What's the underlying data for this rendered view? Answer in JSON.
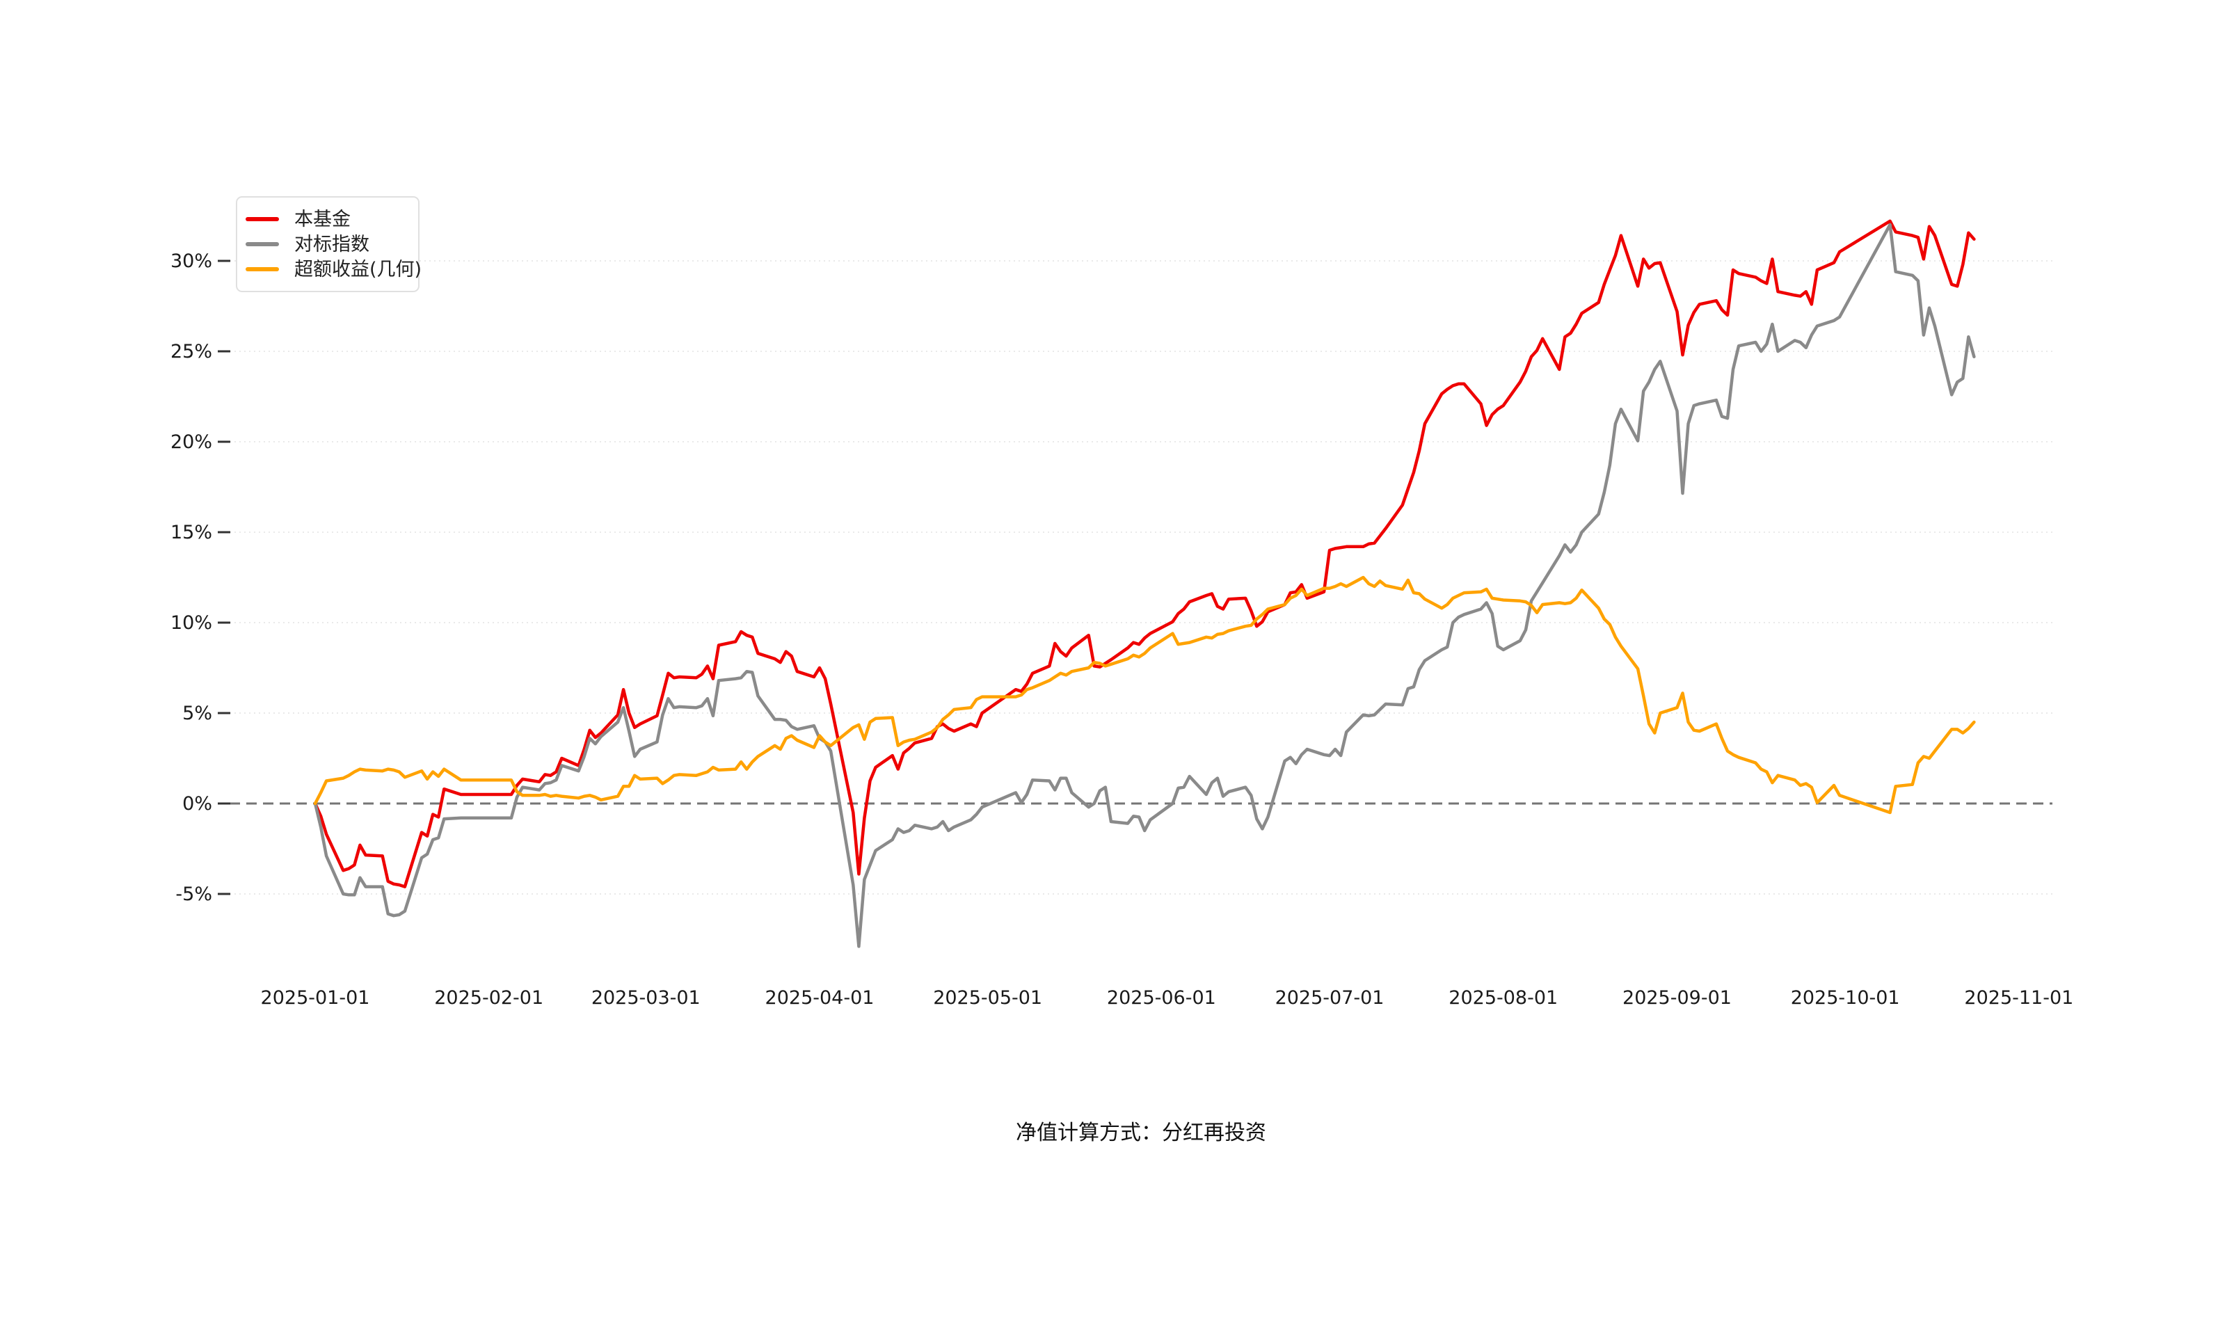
{
  "legend": {
    "items": [
      {
        "label": "本基金",
        "color": "#ee0000"
      },
      {
        "label": "对标指数",
        "color": "#8a8a8a"
      },
      {
        "label": "超额收益(几何)",
        "color": "#ffa200"
      }
    ]
  },
  "footer": {
    "text": "净值计算方式：分红再投资"
  },
  "chart_data": {
    "type": "line",
    "title": "",
    "legend_position": "top-left",
    "grid": "horizontal-dotted",
    "zero_line_value": 0,
    "ylim": [
      -8.7,
      33.9
    ],
    "y_ticks": [
      {
        "label": "30%",
        "value": 30
      },
      {
        "label": "25%",
        "value": 25
      },
      {
        "label": "20%",
        "value": 20
      },
      {
        "label": "15%",
        "value": 15
      },
      {
        "label": "10%",
        "value": 10
      },
      {
        "label": "5%",
        "value": 5
      },
      {
        "label": "0%",
        "value": 0
      },
      {
        "label": "-5%",
        "value": -5
      }
    ],
    "x_tick_labels": [
      "2025-01-01",
      "2025-02-01",
      "2025-03-01",
      "2025-04-01",
      "2025-05-01",
      "2025-06-01",
      "2025-07-01",
      "2025-08-01",
      "2025-09-01",
      "2025-10-01",
      "2025-11-01"
    ],
    "dates": [
      "01-01",
      "01-02",
      "01-03",
      "01-06",
      "01-07",
      "01-08",
      "01-09",
      "01-10",
      "01-13",
      "01-14",
      "01-15",
      "01-16",
      "01-17",
      "01-20",
      "01-21",
      "01-22",
      "01-23",
      "01-24",
      "01-27",
      "02-05",
      "02-06",
      "02-07",
      "02-10",
      "02-11",
      "02-12",
      "02-13",
      "02-14",
      "02-17",
      "02-18",
      "02-19",
      "02-20",
      "02-21",
      "02-24",
      "02-25",
      "02-26",
      "02-27",
      "02-28",
      "03-03",
      "03-04",
      "03-05",
      "03-06",
      "03-07",
      "03-10",
      "03-11",
      "03-12",
      "03-13",
      "03-14",
      "03-17",
      "03-18",
      "03-19",
      "03-20",
      "03-21",
      "03-24",
      "03-25",
      "03-26",
      "03-27",
      "03-28",
      "03-31",
      "04-01",
      "04-02",
      "04-03",
      "04-07",
      "04-08",
      "04-09",
      "04-10",
      "04-11",
      "04-14",
      "04-15",
      "04-16",
      "04-17",
      "04-18",
      "04-21",
      "04-22",
      "04-23",
      "04-24",
      "04-25",
      "04-28",
      "04-29",
      "04-30",
      "05-06",
      "05-07",
      "05-08",
      "05-09",
      "05-12",
      "05-13",
      "05-14",
      "05-15",
      "05-16",
      "05-19",
      "05-20",
      "05-21",
      "05-22",
      "05-23",
      "05-26",
      "05-27",
      "05-28",
      "05-29",
      "05-30",
      "06-03",
      "06-04",
      "06-05",
      "06-06",
      "06-09",
      "06-10",
      "06-11",
      "06-12",
      "06-13",
      "06-16",
      "06-17",
      "06-18",
      "06-19",
      "06-20",
      "06-23",
      "06-24",
      "06-25",
      "06-26",
      "06-27",
      "06-30",
      "07-01",
      "07-02",
      "07-03",
      "07-04",
      "07-07",
      "07-08",
      "07-09",
      "07-10",
      "07-11",
      "07-14",
      "07-15",
      "07-16",
      "07-17",
      "07-18",
      "07-21",
      "07-22",
      "07-23",
      "07-24",
      "07-25",
      "07-28",
      "07-29",
      "07-30",
      "07-31",
      "08-01",
      "08-04",
      "08-05",
      "08-06",
      "08-07",
      "08-08",
      "08-11",
      "08-12",
      "08-13",
      "08-14",
      "08-15",
      "08-18",
      "08-19",
      "08-20",
      "08-21",
      "08-22",
      "08-25",
      "08-26",
      "08-27",
      "08-28",
      "08-29",
      "09-01",
      "09-02",
      "09-03",
      "09-04",
      "09-05",
      "09-08",
      "09-09",
      "09-10",
      "09-11",
      "09-12",
      "09-15",
      "09-16",
      "09-17",
      "09-18",
      "09-19",
      "09-22",
      "09-23",
      "09-24",
      "09-25",
      "09-26",
      "09-29",
      "09-30",
      "10-09",
      "10-10",
      "10-13",
      "10-14",
      "10-15",
      "10-16",
      "10-17",
      "10-20",
      "10-21",
      "10-22",
      "10-23",
      "10-24"
    ],
    "series": [
      {
        "name": "本基金",
        "color": "#ee0000",
        "values": [
          0,
          -0.7,
          -1.7,
          -3.7,
          -3.6,
          -3.4,
          -2.3,
          -2.85,
          -2.9,
          -4.3,
          -4.45,
          -4.5,
          -4.6,
          -1.6,
          -1.8,
          -0.6,
          -0.75,
          0.8,
          0.5,
          0.5,
          1.0,
          1.35,
          1.2,
          1.6,
          1.55,
          1.75,
          2.5,
          2.1,
          3.0,
          4.05,
          3.65,
          3.9,
          4.9,
          6.3,
          5.0,
          4.2,
          4.4,
          4.85,
          6.0,
          7.2,
          6.95,
          7.0,
          6.95,
          7.15,
          7.6,
          6.9,
          8.75,
          8.95,
          9.5,
          9.3,
          9.2,
          8.3,
          8.0,
          7.8,
          8.4,
          8.15,
          7.3,
          7.0,
          7.5,
          6.9,
          5.5,
          -0.5,
          -3.9,
          -0.8,
          1.25,
          2.0,
          2.65,
          1.9,
          2.8,
          3.05,
          3.35,
          3.6,
          4.25,
          4.4,
          4.15,
          4.0,
          4.4,
          4.25,
          5.0,
          6.3,
          6.2,
          6.6,
          7.2,
          7.6,
          8.85,
          8.4,
          8.15,
          8.6,
          9.3,
          7.6,
          7.55,
          7.75,
          7.95,
          8.6,
          8.9,
          8.8,
          9.15,
          9.4,
          10.05,
          10.5,
          10.75,
          11.15,
          11.5,
          11.6,
          10.9,
          10.75,
          11.3,
          11.35,
          10.65,
          9.8,
          10.05,
          10.6,
          11.0,
          11.65,
          11.7,
          12.1,
          11.35,
          11.7,
          14.0,
          14.1,
          14.15,
          14.2,
          14.2,
          14.35,
          14.4,
          14.8,
          15.2,
          16.5,
          17.4,
          18.3,
          19.5,
          21.0,
          22.65,
          22.9,
          23.1,
          23.2,
          23.2,
          22.1,
          20.9,
          21.5,
          21.8,
          22.0,
          23.3,
          23.9,
          24.7,
          25.05,
          25.7,
          24.0,
          25.8,
          26.0,
          26.5,
          27.1,
          27.7,
          28.7,
          29.5,
          30.3,
          31.4,
          28.6,
          30.1,
          29.6,
          29.85,
          29.9,
          27.2,
          24.8,
          26.45,
          27.15,
          27.6,
          27.8,
          27.3,
          27.0,
          29.5,
          29.3,
          29.1,
          28.9,
          28.75,
          30.1,
          28.3,
          28.1,
          28.05,
          28.3,
          27.6,
          29.5,
          29.9,
          30.5,
          32.2,
          31.6,
          31.4,
          31.3,
          30.1,
          31.9,
          31.4,
          28.7,
          28.6,
          29.8,
          31.55,
          31.2
        ]
      },
      {
        "name": "对标指数",
        "color": "#8a8a8a",
        "values": [
          0,
          -1.3,
          -2.9,
          -5.0,
          -5.05,
          -5.05,
          -4.1,
          -4.6,
          -4.6,
          -6.1,
          -6.2,
          -6.15,
          -5.95,
          -3.0,
          -2.8,
          -2.0,
          -1.9,
          -0.85,
          -0.8,
          -0.8,
          0.35,
          0.9,
          0.75,
          1.1,
          1.15,
          1.3,
          2.1,
          1.8,
          2.6,
          3.6,
          3.3,
          3.7,
          4.5,
          5.3,
          4.0,
          2.6,
          3.0,
          3.4,
          4.9,
          5.8,
          5.3,
          5.35,
          5.3,
          5.4,
          5.8,
          4.85,
          6.8,
          6.9,
          6.95,
          7.3,
          7.25,
          5.95,
          4.65,
          4.65,
          4.6,
          4.25,
          4.1,
          4.3,
          3.6,
          3.4,
          2.9,
          -4.5,
          -7.9,
          -4.2,
          -3.4,
          -2.6,
          -2.0,
          -1.4,
          -1.6,
          -1.5,
          -1.2,
          -1.4,
          -1.3,
          -1.0,
          -1.5,
          -1.3,
          -0.9,
          -0.6,
          -0.2,
          0.6,
          0.05,
          0.5,
          1.3,
          1.25,
          0.75,
          1.4,
          1.4,
          0.6,
          -0.2,
          0.0,
          0.7,
          0.9,
          -1.0,
          -1.1,
          -0.7,
          -0.75,
          -1.5,
          -0.9,
          0.0,
          0.85,
          0.9,
          1.5,
          0.5,
          1.15,
          1.4,
          0.4,
          0.65,
          0.9,
          0.45,
          -0.85,
          -1.4,
          -0.75,
          2.35,
          2.55,
          2.2,
          2.7,
          3.0,
          2.7,
          2.65,
          3.0,
          2.65,
          3.95,
          4.9,
          4.85,
          4.9,
          5.2,
          5.5,
          5.45,
          6.35,
          6.45,
          7.4,
          7.9,
          8.5,
          8.65,
          10.0,
          10.3,
          10.45,
          10.75,
          11.1,
          10.5,
          8.7,
          8.5,
          9.0,
          9.6,
          11.2,
          11.7,
          12.2,
          13.7,
          14.3,
          13.9,
          14.3,
          15.0,
          16.0,
          17.2,
          18.7,
          21.0,
          21.8,
          20.05,
          22.8,
          23.3,
          24.0,
          24.45,
          21.7,
          17.15,
          21.0,
          22.0,
          22.1,
          22.3,
          21.4,
          21.3,
          24.0,
          25.3,
          25.5,
          25.0,
          25.4,
          26.5,
          25.0,
          25.6,
          25.5,
          25.2,
          25.9,
          26.4,
          26.7,
          26.9,
          32.0,
          29.4,
          29.2,
          28.9,
          25.9,
          27.4,
          26.4,
          22.6,
          23.3,
          23.5,
          25.8,
          24.7
        ]
      },
      {
        "name": "超额收益(几何)",
        "color": "#ffa200",
        "values": [
          0,
          0.6,
          1.25,
          1.4,
          1.55,
          1.75,
          1.9,
          1.85,
          1.8,
          1.9,
          1.85,
          1.75,
          1.45,
          1.8,
          1.35,
          1.75,
          1.5,
          1.9,
          1.3,
          1.3,
          0.65,
          0.45,
          0.45,
          0.5,
          0.4,
          0.45,
          0.4,
          0.3,
          0.4,
          0.45,
          0.35,
          0.2,
          0.4,
          0.95,
          0.95,
          1.55,
          1.35,
          1.4,
          1.1,
          1.3,
          1.55,
          1.6,
          1.55,
          1.65,
          1.75,
          2.0,
          1.85,
          1.9,
          2.3,
          1.9,
          2.3,
          2.6,
          3.2,
          3.0,
          3.6,
          3.75,
          3.5,
          3.1,
          3.75,
          3.4,
          3.2,
          4.2,
          4.35,
          3.55,
          4.5,
          4.7,
          4.75,
          3.2,
          3.4,
          3.5,
          3.55,
          3.95,
          4.2,
          4.65,
          4.9,
          5.2,
          5.3,
          5.75,
          5.9,
          5.9,
          6.0,
          6.3,
          6.4,
          6.8,
          7.0,
          7.2,
          7.1,
          7.3,
          7.5,
          7.8,
          7.75,
          7.6,
          7.7,
          8.0,
          8.2,
          8.1,
          8.3,
          8.6,
          9.4,
          8.8,
          8.85,
          8.9,
          9.2,
          9.15,
          9.35,
          9.4,
          9.55,
          9.8,
          9.85,
          10.2,
          10.45,
          10.75,
          11.0,
          11.35,
          11.5,
          11.85,
          11.5,
          11.9,
          11.9,
          12.0,
          12.15,
          12.0,
          12.5,
          12.15,
          12.0,
          12.3,
          12.05,
          11.85,
          12.35,
          11.65,
          11.6,
          11.3,
          10.8,
          11.0,
          11.35,
          11.5,
          11.65,
          11.7,
          11.85,
          11.35,
          11.3,
          11.25,
          11.2,
          11.15,
          10.95,
          10.55,
          11.0,
          11.1,
          11.05,
          11.1,
          11.35,
          11.8,
          10.8,
          10.2,
          9.9,
          9.2,
          8.7,
          7.45,
          5.95,
          4.4,
          3.9,
          5.0,
          5.3,
          6.1,
          4.5,
          4.05,
          4.0,
          4.4,
          3.6,
          2.9,
          2.7,
          2.55,
          2.25,
          1.9,
          1.75,
          1.15,
          1.55,
          1.3,
          1.0,
          1.1,
          0.9,
          0.05,
          1.0,
          0.45,
          -0.5,
          0.95,
          1.05,
          2.25,
          2.6,
          2.5,
          2.9,
          4.1,
          4.1,
          3.9,
          4.15,
          4.5
        ]
      }
    ]
  }
}
